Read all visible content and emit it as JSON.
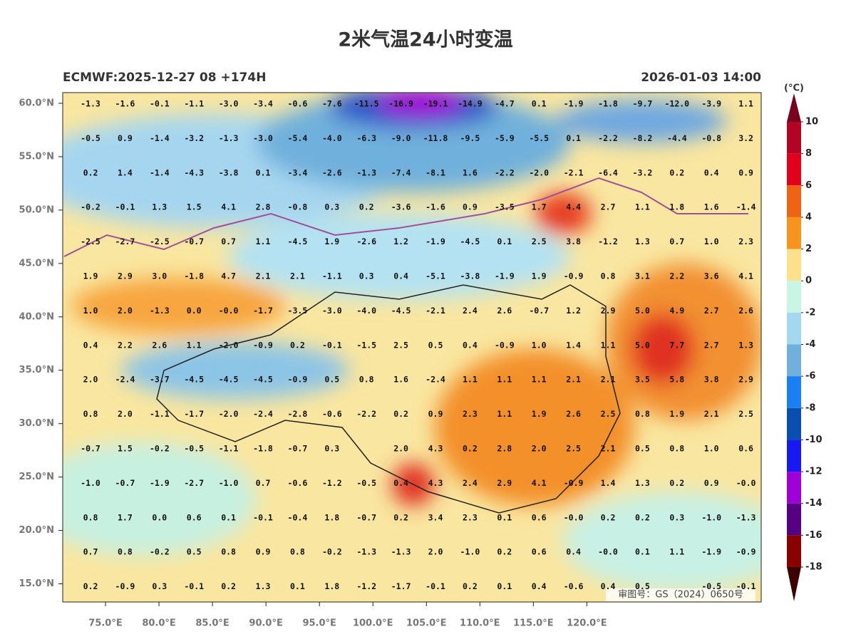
{
  "header": {
    "title": "2米气温24小时变温",
    "run": "ECMWF:2025-12-27 08 +174H",
    "valid": "2026-01-03 14:00"
  },
  "map": {
    "xlim": [
      71,
      136.3
    ],
    "ylim": [
      13.3,
      61
    ],
    "xticks": [
      {
        "value": 75,
        "label": "75.0°E"
      },
      {
        "value": 80,
        "label": "80.0°E"
      },
      {
        "value": 85,
        "label": "85.0°E"
      },
      {
        "value": 90,
        "label": "90.0°E"
      },
      {
        "value": 95,
        "label": "95.0°E"
      },
      {
        "value": 100,
        "label": "100.0°E"
      },
      {
        "value": 105,
        "label": "105.0°E"
      },
      {
        "value": 110,
        "label": "110.0°E"
      },
      {
        "value": 115,
        "label": "115.0°E"
      },
      {
        "value": 120,
        "label": "120.0°E"
      }
    ],
    "yticks": [
      {
        "value": 60,
        "label": "60.0°N"
      },
      {
        "value": 55,
        "label": "55.0°N"
      },
      {
        "value": 50,
        "label": "50.0°N"
      },
      {
        "value": 45,
        "label": "45.0°N"
      },
      {
        "value": 40,
        "label": "40.0°N"
      },
      {
        "value": 35,
        "label": "35.0°N"
      },
      {
        "value": 30,
        "label": "30.0°N"
      },
      {
        "value": 25,
        "label": "25.0°N"
      },
      {
        "value": 20,
        "label": "20.0°N"
      },
      {
        "value": 15,
        "label": "15.0°N"
      }
    ],
    "grid_labels": [
      [
        "-1.3",
        "-1.6",
        "-0.1",
        "-1.1",
        "-3.0",
        "-3.4",
        "-0.6",
        "-7.6",
        "-11.5",
        "-16.9",
        "-19.1",
        "-14.9",
        "-4.7",
        "0.1",
        "-1.9",
        "-1.8",
        "-9.7",
        "-12.0",
        "-3.9",
        "1.1"
      ],
      [
        "-0.5",
        "0.9",
        "-1.4",
        "-3.2",
        "-1.3",
        "-3.0",
        "-5.4",
        "-4.0",
        "-6.3",
        "-9.0",
        "-11.8",
        "-9.5",
        "-5.9",
        "-5.5",
        "0.1",
        "-2.2",
        "-8.2",
        "-4.4",
        "-0.8",
        "3.2"
      ],
      [
        "0.2",
        "1.4",
        "-1.4",
        "-4.3",
        "-3.8",
        "0.1",
        "-3.4",
        "-2.6",
        "-1.3",
        "-7.4",
        "-8.1",
        "1.6",
        "-2.2",
        "-2.0",
        "-2.1",
        "-6.4",
        "-3.2",
        "0.2",
        "0.4",
        "0.9"
      ],
      [
        "-0.2",
        "-0.1",
        "1.3",
        "1.5",
        "4.1",
        "2.8",
        "-0.8",
        "0.3",
        "0.2",
        "-3.6",
        "-1.6",
        "0.9",
        "-3.5",
        "1.7",
        "4.4",
        "2.7",
        "1.1",
        "1.8",
        "1.6",
        "-1.4"
      ],
      [
        "-2.5",
        "-2.7",
        "-2.5",
        "-0.7",
        "0.7",
        "1.1",
        "-4.5",
        "1.9",
        "-2.6",
        "1.2",
        "-1.9",
        "-4.5",
        "0.1",
        "2.5",
        "3.8",
        "-1.2",
        "1.3",
        "0.7",
        "1.0",
        "2.3"
      ],
      [
        "1.9",
        "2.9",
        "3.0",
        "-1.8",
        "4.7",
        "2.1",
        "2.1",
        "-1.1",
        "0.3",
        "0.4",
        "-5.1",
        "-3.8",
        "-1.9",
        "1.9",
        "-0.9",
        "0.8",
        "3.1",
        "2.2",
        "3.6",
        "4.1"
      ],
      [
        "1.0",
        "2.0",
        "-1.3",
        "0.0",
        "-0.0",
        "-1.7",
        "-3.5",
        "-3.0",
        "-4.0",
        "-4.5",
        "-2.1",
        "2.4",
        "2.6",
        "-0.7",
        "1.2",
        "2.9",
        "5.0",
        "4.9",
        "2.7",
        "2.6"
      ],
      [
        "0.4",
        "2.2",
        "2.6",
        "1.1",
        "-2.0",
        "-0.9",
        "0.2",
        "-0.1",
        "-1.5",
        "2.5",
        "0.5",
        "0.4",
        "-0.9",
        "1.0",
        "1.4",
        "1.1",
        "5.0",
        "7.7",
        "2.7",
        "1.3"
      ],
      [
        "2.0",
        "-2.4",
        "-3.7",
        "-4.5",
        "-4.5",
        "-4.5",
        "-0.9",
        "0.5",
        "0.8",
        "1.6",
        "-2.4",
        "1.1",
        "1.1",
        "1.1",
        "2.1",
        "2.1",
        "3.5",
        "5.8",
        "3.8",
        "2.9"
      ],
      [
        "0.8",
        "2.0",
        "-1.1",
        "-1.7",
        "-2.0",
        "-2.4",
        "-2.8",
        "-0.6",
        "-2.2",
        "0.2",
        "0.9",
        "2.3",
        "1.1",
        "1.9",
        "2.6",
        "2.5",
        "0.8",
        "1.9",
        "2.1",
        "2.5"
      ],
      [
        "-0.7",
        "1.5",
        "-0.2",
        "-0.5",
        "-1.1",
        "-1.8",
        "-0.7",
        "0.3",
        null,
        "2.0",
        "4.3",
        "0.2",
        "2.8",
        "2.0",
        "2.5",
        "2.1",
        "0.5",
        "0.8",
        "1.0",
        "0.6"
      ],
      [
        "-1.0",
        "-0.7",
        "-1.9",
        "-2.7",
        "-1.0",
        "0.7",
        "-0.6",
        "-1.2",
        "-0.5",
        "0.4",
        "4.3",
        "2.4",
        "2.9",
        "4.1",
        "-0.9",
        "1.4",
        "1.3",
        "0.2",
        "0.9",
        "-0.0"
      ],
      [
        "0.8",
        "1.7",
        "0.0",
        "0.6",
        "0.1",
        "-0.1",
        "-0.4",
        "1.8",
        "-0.7",
        "0.2",
        "3.4",
        "2.3",
        "0.1",
        "0.6",
        "-0.0",
        "0.2",
        "0.2",
        "0.3",
        "-1.0",
        "-1.3"
      ],
      [
        "0.7",
        "0.8",
        "-0.2",
        "0.5",
        "0.8",
        "0.9",
        "0.8",
        "-0.2",
        "-1.3",
        "-1.3",
        "2.0",
        "-1.0",
        "0.2",
        "0.6",
        "0.4",
        "-0.0",
        "0.1",
        "1.1",
        "-1.9",
        "-0.9"
      ],
      [
        "0.2",
        "-0.9",
        "0.3",
        "-0.1",
        "0.2",
        "1.3",
        "0.1",
        "1.8",
        "-1.2",
        "-1.7",
        "-0.1",
        "0.2",
        "0.1",
        "0.4",
        "-0.6",
        "0.4",
        "0.5",
        null,
        "-0.5",
        "-0.1"
      ]
    ],
    "approval": "审图号：GS（2024）0650号"
  },
  "colorbar": {
    "unit": "(°C)",
    "ticks": [
      10,
      8,
      6,
      4,
      2,
      0,
      -2,
      -4,
      -6,
      -8,
      -10,
      -12,
      -14,
      -16,
      -18
    ],
    "colors": [
      "#b40426",
      "#e3001b",
      "#ef6414",
      "#f7941d",
      "#fde08c",
      "#c8f5e4",
      "#a4d8f0",
      "#6fb0dc",
      "#1a7ff2",
      "#0a4fb0",
      "#1818f0",
      "#a000d8",
      "#560083",
      "#880000"
    ],
    "extend_colors": [
      "#7a0020",
      "#3c0000"
    ]
  }
}
